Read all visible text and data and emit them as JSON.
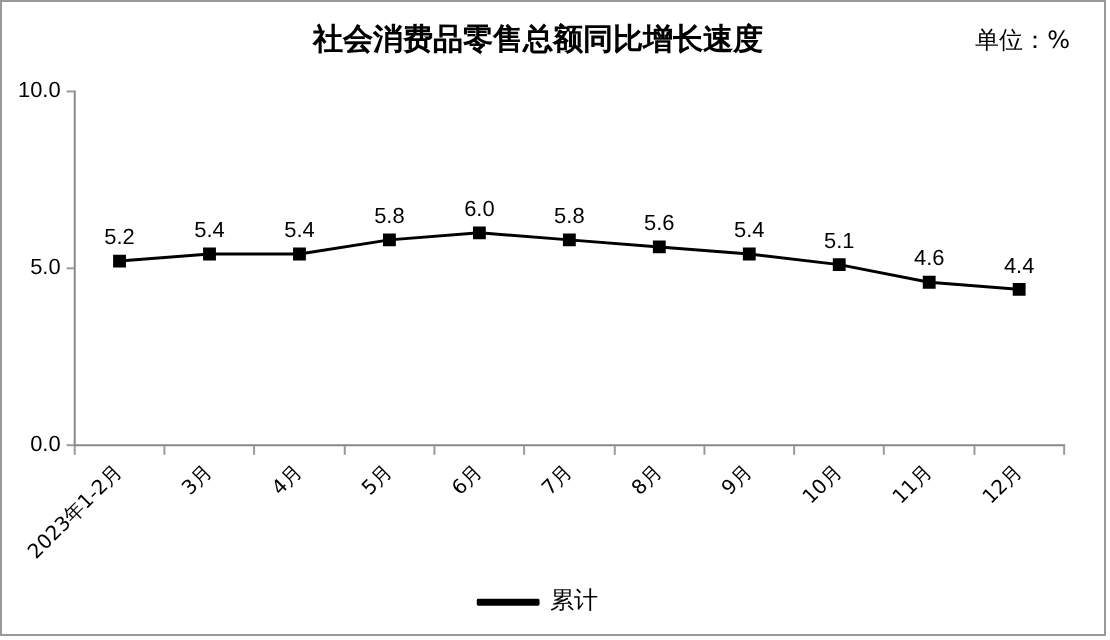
{
  "chart_data": {
    "type": "line",
    "title": "社会消费品零售总额同比增长速度",
    "annotations": [
      "单位：%"
    ],
    "categories": [
      "2023年1-2月",
      "3月",
      "4月",
      "5月",
      "6月",
      "7月",
      "8月",
      "9月",
      "10月",
      "11月",
      "12月"
    ],
    "series": [
      {
        "name": "累计",
        "color": "#000000",
        "values": [
          5.2,
          5.4,
          5.4,
          5.8,
          6.0,
          5.8,
          5.6,
          5.4,
          5.1,
          4.6,
          4.4
        ],
        "value_labels": [
          "5.2",
          "5.4",
          "5.4",
          "5.8",
          "6.0",
          "5.8",
          "5.6",
          "5.4",
          "5.1",
          "4.6",
          "4.4"
        ]
      }
    ],
    "ylim": [
      0,
      10
    ],
    "yticks": [
      {
        "value": 0,
        "label": "0.0"
      },
      {
        "value": 5,
        "label": "5.0"
      },
      {
        "value": 10,
        "label": "10.0"
      }
    ],
    "grid": false,
    "legend": "bottom",
    "marker": "square",
    "line_style": "solid"
  }
}
